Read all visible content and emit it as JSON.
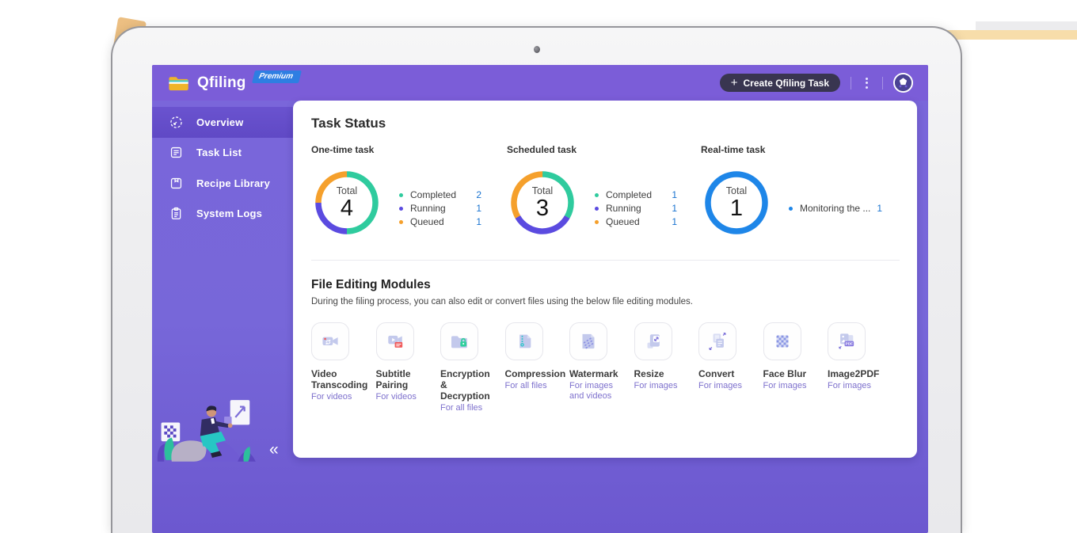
{
  "header": {
    "app_name": "Qfiling",
    "premium_badge": "Premium",
    "create_task_label": "Create Qfiling Task",
    "plus_glyph": "+",
    "icons": {
      "logo": "folder-logo-icon",
      "menu": "kebab-menu-icon",
      "account": "user-avatar"
    }
  },
  "sidebar": {
    "items": [
      {
        "label": "Overview",
        "icon": "gauge-icon",
        "active": true
      },
      {
        "label": "Task List",
        "icon": "task-list-icon",
        "active": false
      },
      {
        "label": "Recipe Library",
        "icon": "recipe-library-icon",
        "active": false
      },
      {
        "label": "System Logs",
        "icon": "system-logs-icon",
        "active": false
      }
    ],
    "collapse_glyph": "«"
  },
  "task_status": {
    "title": "Task Status"
  },
  "chart_data": [
    {
      "type": "pie",
      "title": "One-time task",
      "center_label": "Total",
      "total": 4,
      "series": [
        {
          "name": "Completed",
          "value": 2,
          "color": "#2fcb9e"
        },
        {
          "name": "Running",
          "value": 1,
          "color": "#5b4be0"
        },
        {
          "name": "Queued",
          "value": 1,
          "color": "#f5a02c"
        }
      ]
    },
    {
      "type": "pie",
      "title": "Scheduled task",
      "center_label": "Total",
      "total": 3,
      "series": [
        {
          "name": "Completed",
          "value": 1,
          "color": "#2fcb9e"
        },
        {
          "name": "Running",
          "value": 1,
          "color": "#5b4be0"
        },
        {
          "name": "Queued",
          "value": 1,
          "color": "#f5a02c"
        }
      ]
    },
    {
      "type": "pie",
      "title": "Real-time task",
      "center_label": "Total",
      "total": 1,
      "series": [
        {
          "name": "Monitoring the ...",
          "value": 1,
          "color": "#1e86e8"
        }
      ]
    }
  ],
  "modules": {
    "title": "File Editing Modules",
    "subtitle": "During the filing process, you can also edit or convert files using the below file editing modules.",
    "items": [
      {
        "name": "Video Transcoding",
        "for": "For videos",
        "icon": "video-transcoding-icon"
      },
      {
        "name": "Subtitle Pairing",
        "for": "For videos",
        "icon": "subtitle-pairing-icon"
      },
      {
        "name": "Encryption & Decryption",
        "for": "For all files",
        "icon": "encryption-decryption-icon"
      },
      {
        "name": "Compression",
        "for": "For all files",
        "icon": "compression-icon"
      },
      {
        "name": "Watermark",
        "for": "For images and videos",
        "icon": "watermark-icon"
      },
      {
        "name": "Resize",
        "for": "For images",
        "icon": "resize-icon"
      },
      {
        "name": "Convert",
        "for": "For images",
        "icon": "convert-icon"
      },
      {
        "name": "Face Blur",
        "for": "For images",
        "icon": "face-blur-icon"
      },
      {
        "name": "Image2PDF",
        "for": "For images",
        "icon": "image2pdf-icon"
      }
    ]
  },
  "colors": {
    "screen_purple": "#7767d9",
    "header_purple": "#7b5dd8",
    "active_item_purple": "#654ec9",
    "completed_green": "#2fcb9e",
    "running_purple": "#5b4be0",
    "queued_orange": "#f5a02c",
    "realtime_blue": "#1e86e8",
    "legend_value_blue": "#1a73d0",
    "premium_badge_blue": "#2e7ee2",
    "folder_yellow": "#f0b429",
    "tan_accent": "#f7ddaa"
  }
}
